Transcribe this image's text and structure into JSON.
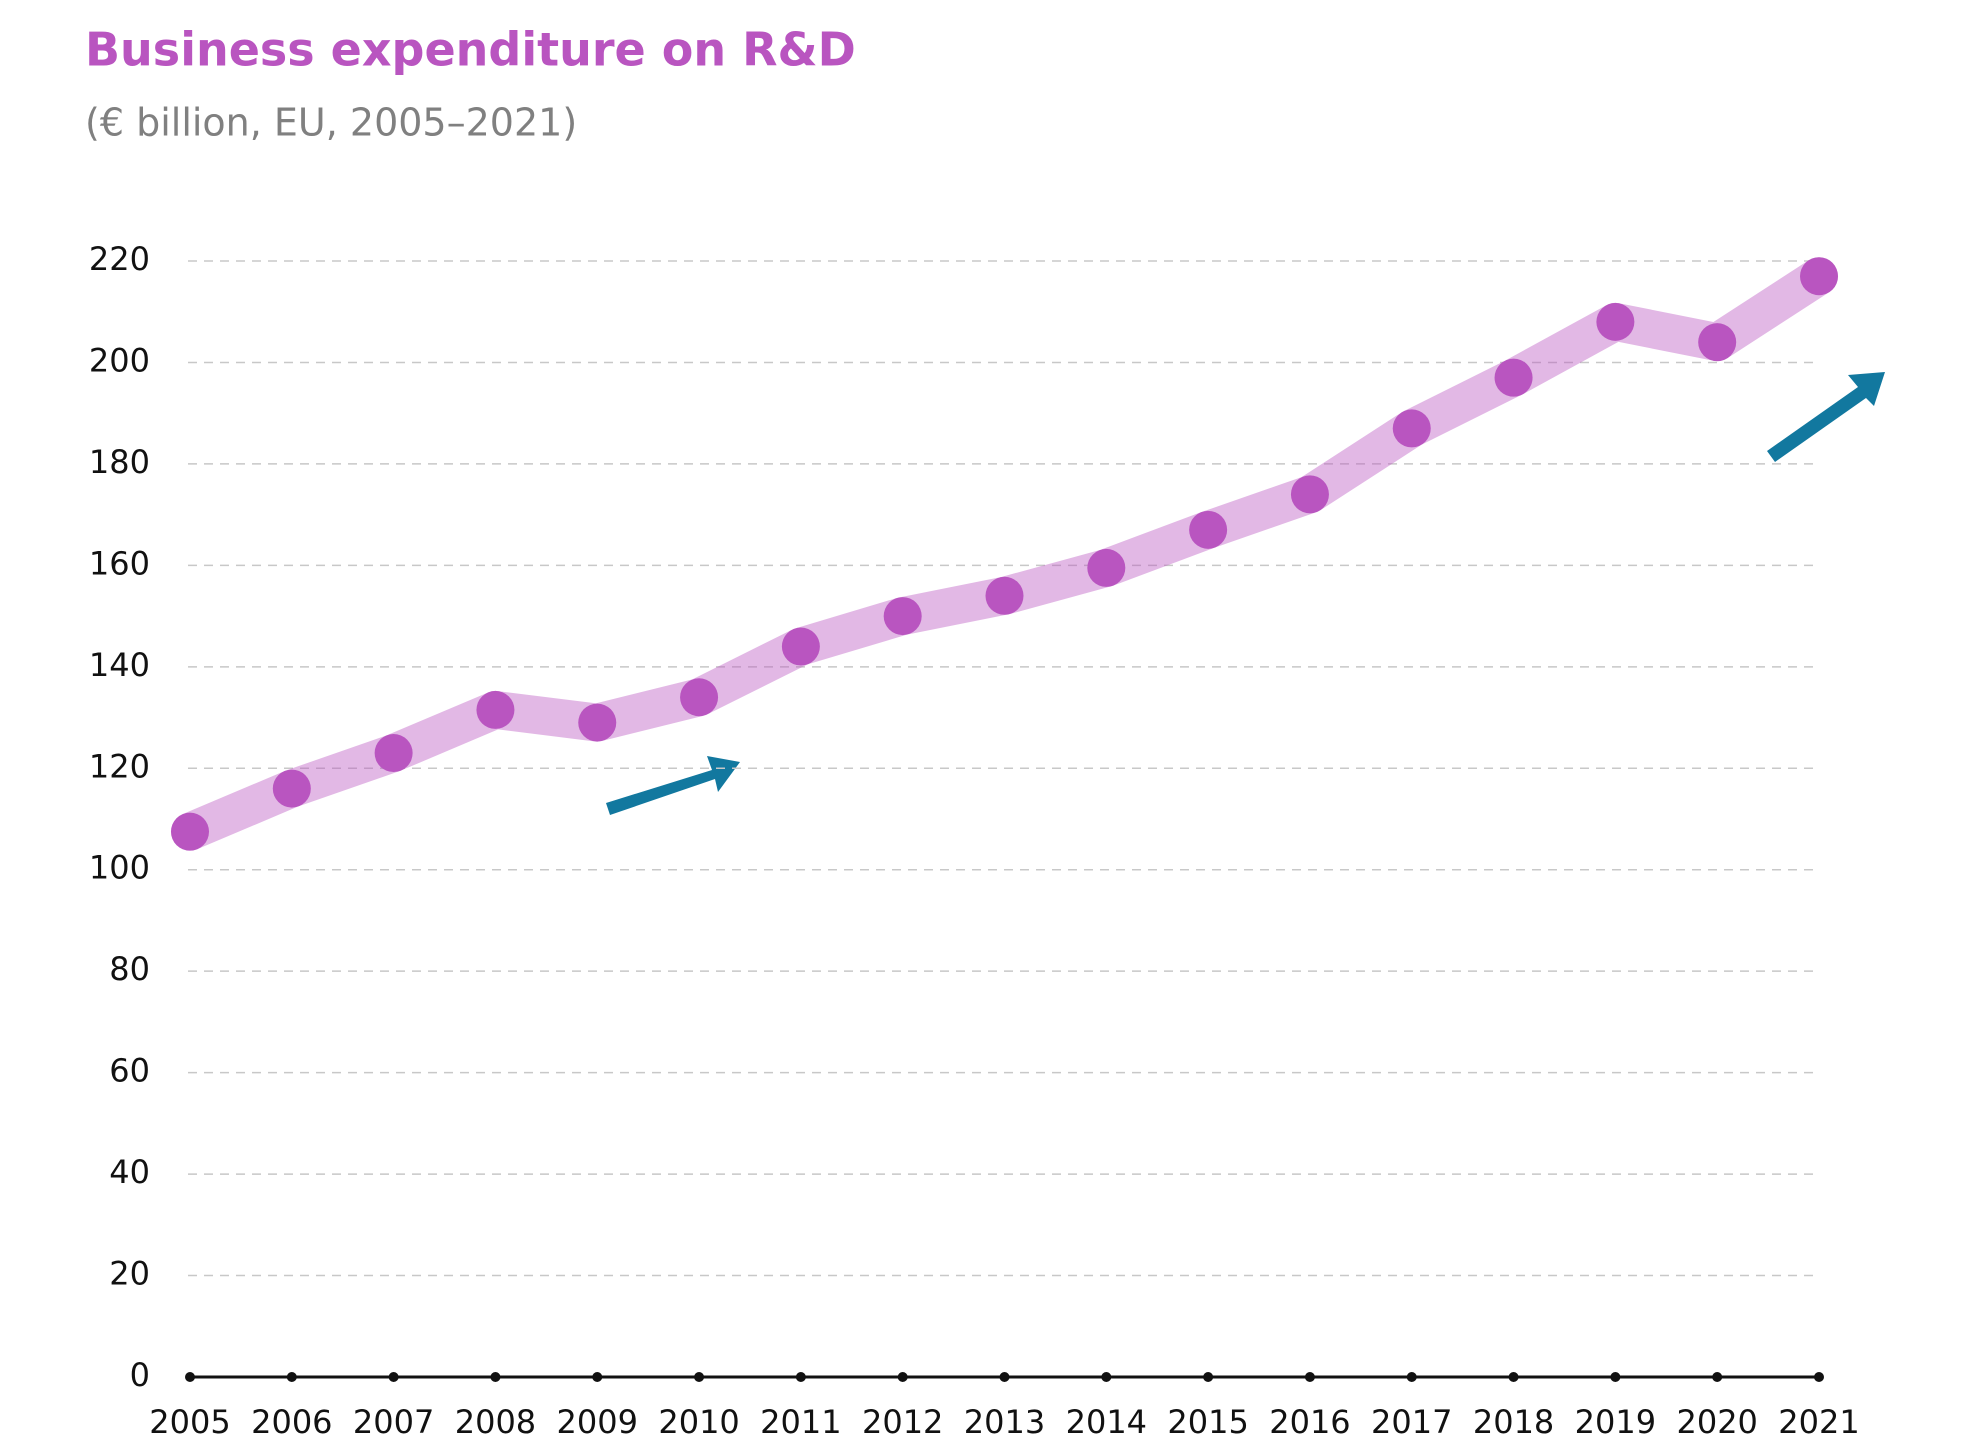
{
  "chart_data": {
    "type": "line",
    "title": "Business expenditure on R&D",
    "subtitle": "(€ billion, EU, 2005–2021)",
    "x": [
      2005,
      2006,
      2007,
      2008,
      2009,
      2010,
      2011,
      2012,
      2013,
      2014,
      2015,
      2016,
      2017,
      2018,
      2019,
      2020,
      2021
    ],
    "series": [
      {
        "color": "#b955c0",
        "values": [
          107.5,
          116,
          123,
          131.5,
          129,
          134,
          144,
          150,
          154,
          159.5,
          167,
          174,
          187,
          197,
          208,
          204,
          217
        ]
      }
    ],
    "xlim": [
      2005,
      2021
    ],
    "xticks": [
      2005,
      2006,
      2007,
      2008,
      2009,
      2010,
      2011,
      2012,
      2013,
      2014,
      2015,
      2016,
      2017,
      2018,
      2019,
      2020,
      2021
    ],
    "ylim": [
      0,
      220
    ],
    "yticks": [
      0,
      20,
      40,
      60,
      80,
      100,
      120,
      140,
      160,
      180,
      200,
      220
    ],
    "grid": true
  }
}
